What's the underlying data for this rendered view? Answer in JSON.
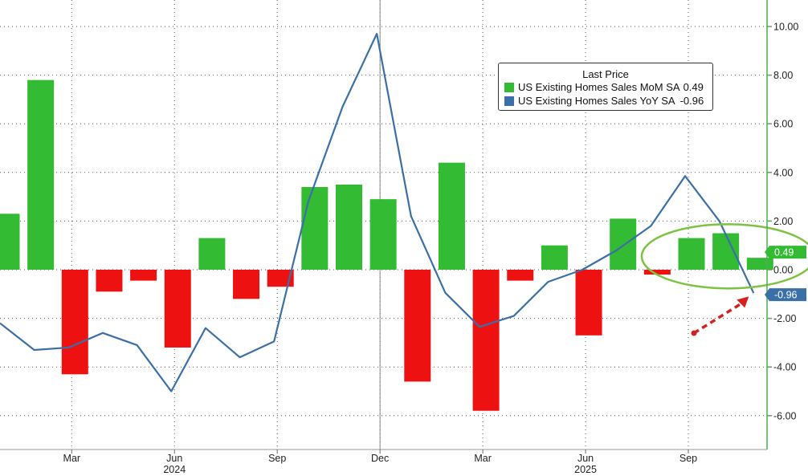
{
  "chart_data": {
    "type": "bar+line",
    "legend": {
      "title": "Last Price",
      "entries": [
        {
          "label": "US Existing Homes Sales MoM SA",
          "value": "0.49",
          "color": "#33bb33"
        },
        {
          "label": "US Existing Homes Sales YoY SA",
          "value": "-0.96",
          "color": "#3a6fa8"
        }
      ]
    },
    "months": [
      "2024-01",
      "2024-02",
      "2024-03",
      "2024-04",
      "2024-05",
      "2024-06",
      "2024-07",
      "2024-08",
      "2024-09",
      "2024-10",
      "2024-11",
      "2024-12",
      "2025-01",
      "2025-02",
      "2025-03",
      "2025-04",
      "2025-05",
      "2025-06",
      "2025-07",
      "2025-08",
      "2025-09",
      "2025-10",
      "2025-11"
    ],
    "series": [
      {
        "name": "US Existing Homes Sales MoM SA",
        "kind": "bar",
        "values": [
          2.3,
          7.8,
          -4.3,
          -0.9,
          -0.45,
          -3.2,
          1.3,
          -1.2,
          -0.7,
          3.4,
          3.5,
          2.9,
          -4.6,
          4.4,
          -5.8,
          -0.45,
          1.0,
          -2.7,
          2.1,
          -0.2,
          1.3,
          1.5,
          0.49
        ],
        "positive_color": "#33bb33",
        "negative_color": "#ee1111"
      },
      {
        "name": "US Existing Homes Sales YoY SA",
        "kind": "line",
        "values": [
          -2.2,
          -3.3,
          -3.2,
          -2.6,
          -3.1,
          -5.0,
          -2.4,
          -3.6,
          -2.95,
          2.8,
          6.7,
          9.7,
          2.2,
          -0.95,
          -2.35,
          -1.9,
          -0.5,
          0.0,
          0.8,
          1.8,
          3.85,
          2.0,
          -0.96
        ],
        "color": "#3a6fa8"
      }
    ],
    "x_tick_labels": [
      {
        "month": "2024-03",
        "label": "Mar"
      },
      {
        "month": "2024-06",
        "label": "Jun"
      },
      {
        "month": "2024-09",
        "label": "Sep"
      },
      {
        "month": "2024-12",
        "label": "Dec"
      },
      {
        "month": "2025-03",
        "label": "Mar"
      },
      {
        "month": "2025-06",
        "label": "Jun"
      },
      {
        "month": "2025-09",
        "label": "Sep"
      }
    ],
    "year_labels": [
      {
        "month": "2024-06",
        "label": "2024"
      },
      {
        "month": "2025-06",
        "label": "2025"
      }
    ],
    "y_axis": {
      "position": "right",
      "ticks": [
        10,
        8,
        6,
        4,
        2,
        0,
        -2,
        -4,
        -6
      ],
      "tick_labels": [
        "10.00",
        "8.00",
        "6.00",
        "4.00",
        "2.00",
        "0.00",
        "-2.00",
        "-4.00",
        "-6.00"
      ],
      "ylim": [
        -7.4,
        11
      ],
      "grid": true
    },
    "last_value_tags": [
      {
        "label": "0.49",
        "value": 0.49,
        "color": "#33bb33"
      },
      {
        "label": "-0.96",
        "value": -0.96,
        "color": "#3a6fa8"
      }
    ],
    "annotations": {
      "ellipse_color": "#7dc242",
      "ellipse_spans": [
        "2025-09",
        "2025-11"
      ],
      "arrow_color": "#d62020",
      "arrow_points_to": "2025-11"
    },
    "axis_color": "#4caf50"
  }
}
